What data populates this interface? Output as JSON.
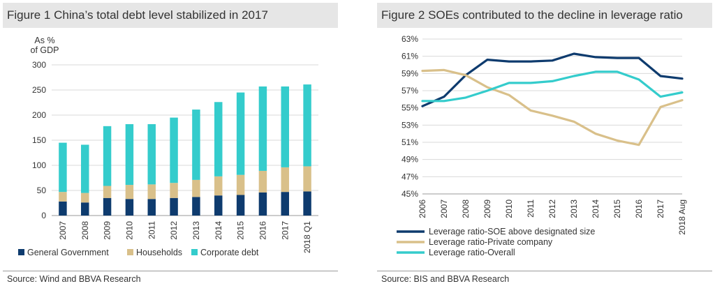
{
  "chart_data": [
    {
      "type": "bar",
      "stacked": true,
      "title": "Figure 1 China’s total debt level stabilized in 2017",
      "ylabel": "As %\nof GDP",
      "categories": [
        "2007",
        "2008",
        "2009",
        "2010",
        "2011",
        "2012",
        "2013",
        "2014",
        "2015",
        "2016",
        "2017",
        "2018 Q1"
      ],
      "ylim": [
        0,
        300
      ],
      "yticks": [
        0,
        50,
        100,
        150,
        200,
        250,
        300
      ],
      "grid": true,
      "legend": "bottom",
      "series": [
        {
          "name": "General Government",
          "color": "#0e3b6e",
          "values": [
            28,
            26,
            35,
            33,
            33,
            35,
            37,
            40,
            41,
            46,
            47,
            48
          ]
        },
        {
          "name": "Households",
          "color": "#d9c08a",
          "values": [
            19,
            19,
            24,
            28,
            29,
            30,
            34,
            38,
            40,
            43,
            49,
            50
          ]
        },
        {
          "name": "Corporate debt",
          "color": "#34cccc",
          "values": [
            98,
            96,
            119,
            121,
            120,
            130,
            140,
            148,
            164,
            168,
            161,
            163
          ]
        }
      ],
      "source": "Source: Wind and BBVA Research"
    },
    {
      "type": "line",
      "title": "Figure 2 SOEs contributed to the decline in leverage ratio",
      "categories": [
        "2006",
        "2007",
        "2008",
        "2009",
        "2010",
        "2011",
        "2012",
        "2013",
        "2014",
        "2015",
        "2016",
        "2017",
        "2018 Aug"
      ],
      "ylim": [
        45,
        63
      ],
      "yticks": [
        "45%",
        "47%",
        "49%",
        "51%",
        "53%",
        "55%",
        "57%",
        "59%",
        "61%",
        "63%"
      ],
      "grid": true,
      "legend": "bottom",
      "series": [
        {
          "name": "Leverage ratio-SOE above designated size",
          "color": "#0e3b6e",
          "values": [
            55.2,
            56.3,
            58.8,
            60.6,
            60.4,
            60.4,
            60.5,
            61.3,
            60.9,
            60.8,
            60.8,
            58.7,
            58.4
          ]
        },
        {
          "name": "Leverage ratio-Private company",
          "color": "#d9c08a",
          "values": [
            59.3,
            59.4,
            58.8,
            57.4,
            56.5,
            54.7,
            54.1,
            53.4,
            52.0,
            51.2,
            50.7,
            55.1,
            55.9
          ]
        },
        {
          "name": "Leverage ratio-Overall",
          "color": "#34cccc",
          "values": [
            55.8,
            55.8,
            56.2,
            57.0,
            57.9,
            57.9,
            58.1,
            58.7,
            59.2,
            59.2,
            58.3,
            56.3,
            56.8
          ]
        }
      ],
      "source": "Source: BIS and BBVA Research"
    }
  ]
}
